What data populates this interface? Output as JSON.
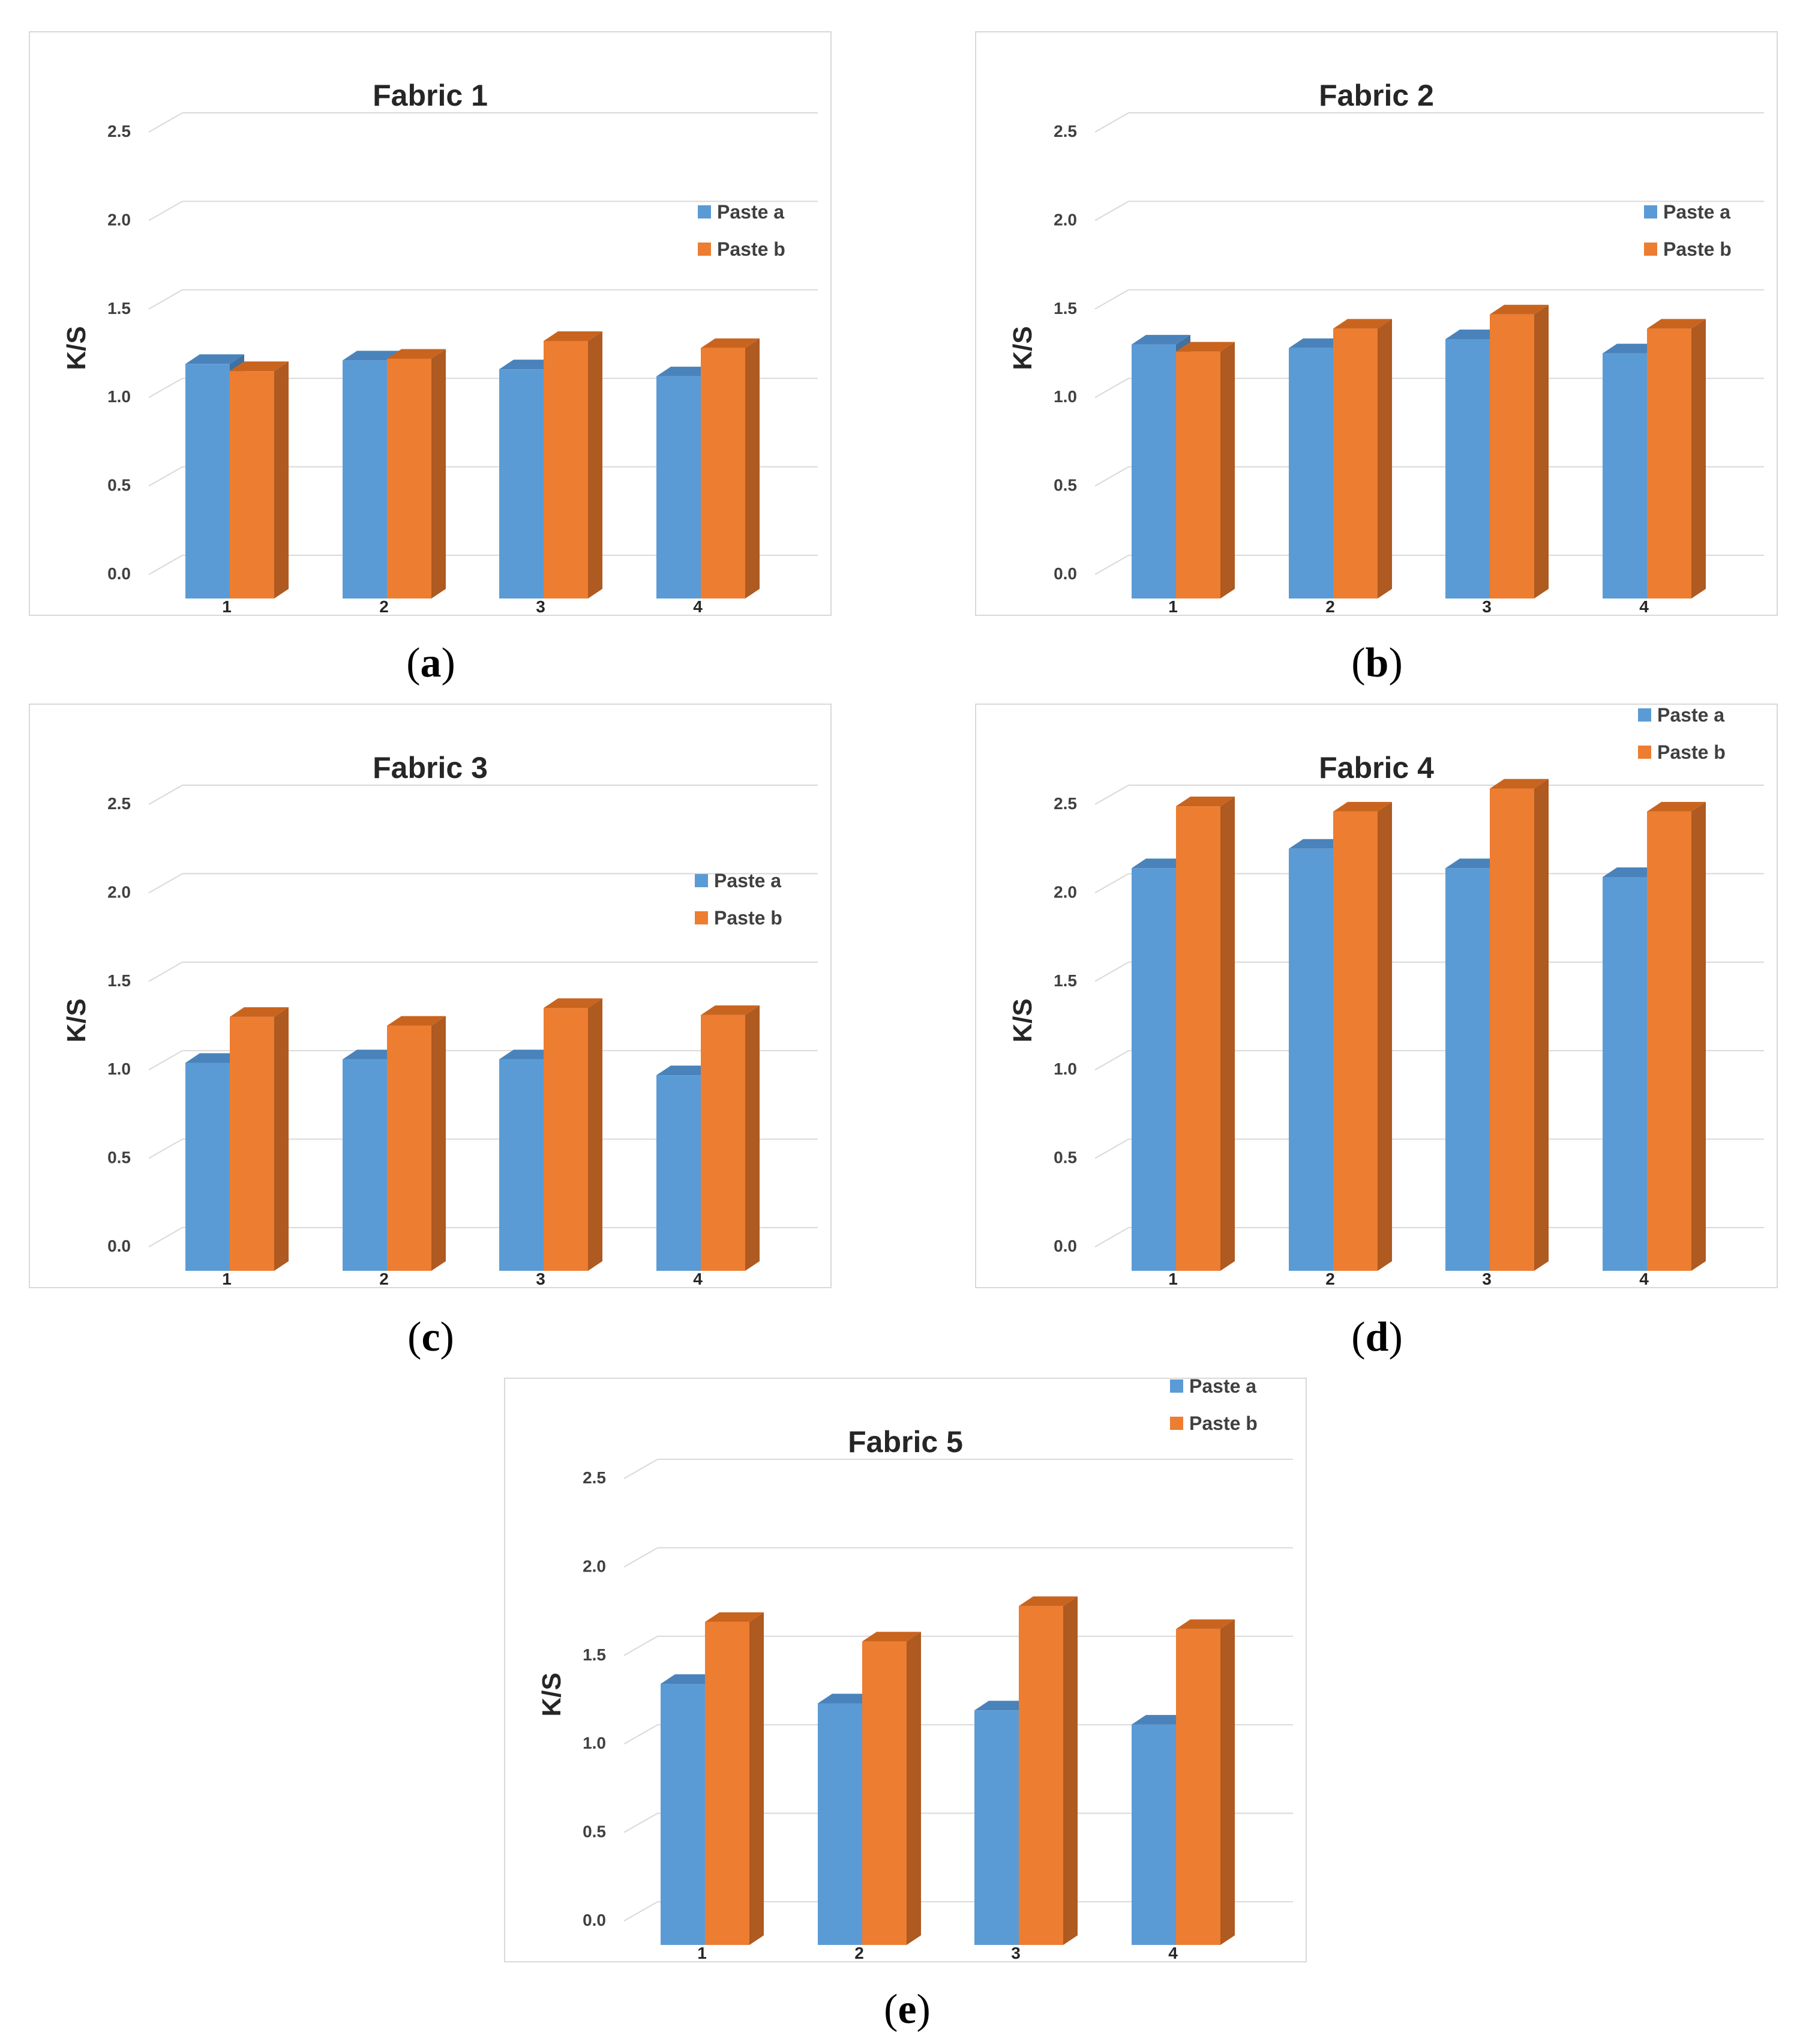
{
  "colors": {
    "paste_a": "#5b9bd5",
    "paste_a_side": "#41719c",
    "paste_a_top": "#4a83bb",
    "paste_b": "#ed7d31",
    "paste_b_side": "#ae5a21",
    "paste_b_top": "#c9641f",
    "gridline": "#d9d9d9",
    "text": "#404040",
    "title_text": "#262626"
  },
  "captions": [
    "a",
    "b",
    "c",
    "d",
    "e"
  ],
  "chart_data": [
    {
      "type": "bar",
      "title": "Fabric 1",
      "xlabel": "",
      "ylabel": "K/S",
      "categories": [
        "1",
        "2",
        "3",
        "4"
      ],
      "ylim": [
        0,
        2.5
      ],
      "yticks": [
        "0.0",
        "0.5",
        "1.0",
        "1.5",
        "2.0",
        "2.5"
      ],
      "legend_position": "right",
      "series": [
        {
          "name": "Paste a",
          "values": [
            1.21,
            1.23,
            1.18,
            1.14
          ]
        },
        {
          "name": "Paste b",
          "values": [
            1.17,
            1.24,
            1.34,
            1.3
          ]
        }
      ]
    },
    {
      "type": "bar",
      "title": "Fabric 2",
      "xlabel": "",
      "ylabel": "K/S",
      "categories": [
        "1",
        "2",
        "3",
        "4"
      ],
      "ylim": [
        0,
        2.5
      ],
      "yticks": [
        "0.0",
        "0.5",
        "1.0",
        "1.5",
        "2.0",
        "2.5"
      ],
      "legend_position": "right",
      "series": [
        {
          "name": "Paste a",
          "values": [
            1.32,
            1.3,
            1.35,
            1.27
          ]
        },
        {
          "name": "Paste b",
          "values": [
            1.28,
            1.41,
            1.49,
            1.41
          ]
        }
      ]
    },
    {
      "type": "bar",
      "title": "Fabric 3",
      "xlabel": "",
      "ylabel": "K/S",
      "categories": [
        "1",
        "2",
        "3",
        "4"
      ],
      "ylim": [
        0,
        2.5
      ],
      "yticks": [
        "0.0",
        "0.5",
        "1.0",
        "1.5",
        "2.0",
        "2.5"
      ],
      "legend_position": "right",
      "series": [
        {
          "name": "Paste a",
          "values": [
            1.06,
            1.08,
            1.08,
            0.99
          ]
        },
        {
          "name": "Paste b",
          "values": [
            1.32,
            1.27,
            1.37,
            1.33
          ]
        }
      ]
    },
    {
      "type": "bar",
      "title": "Fabric 4",
      "xlabel": "",
      "ylabel": "K/S",
      "categories": [
        "1",
        "2",
        "3",
        "4"
      ],
      "ylim": [
        0,
        2.5
      ],
      "yticks": [
        "0.0",
        "0.5",
        "1.0",
        "1.5",
        "2.0",
        "2.5"
      ],
      "legend_position": "top-right",
      "series": [
        {
          "name": "Paste a",
          "values": [
            2.16,
            2.27,
            2.16,
            2.11
          ]
        },
        {
          "name": "Paste b",
          "values": [
            2.51,
            2.48,
            2.61,
            2.48
          ]
        }
      ]
    },
    {
      "type": "bar",
      "title": "Fabric 5",
      "xlabel": "",
      "ylabel": "K/S",
      "categories": [
        "1",
        "2",
        "3",
        "4"
      ],
      "ylim": [
        0,
        2.5
      ],
      "yticks": [
        "0.0",
        "0.5",
        "1.0",
        "1.5",
        "2.0",
        "2.5"
      ],
      "legend_position": "top-right",
      "series": [
        {
          "name": "Paste a",
          "values": [
            1.36,
            1.25,
            1.21,
            1.13
          ]
        },
        {
          "name": "Paste b",
          "values": [
            1.71,
            1.6,
            1.8,
            1.67
          ]
        }
      ]
    }
  ]
}
